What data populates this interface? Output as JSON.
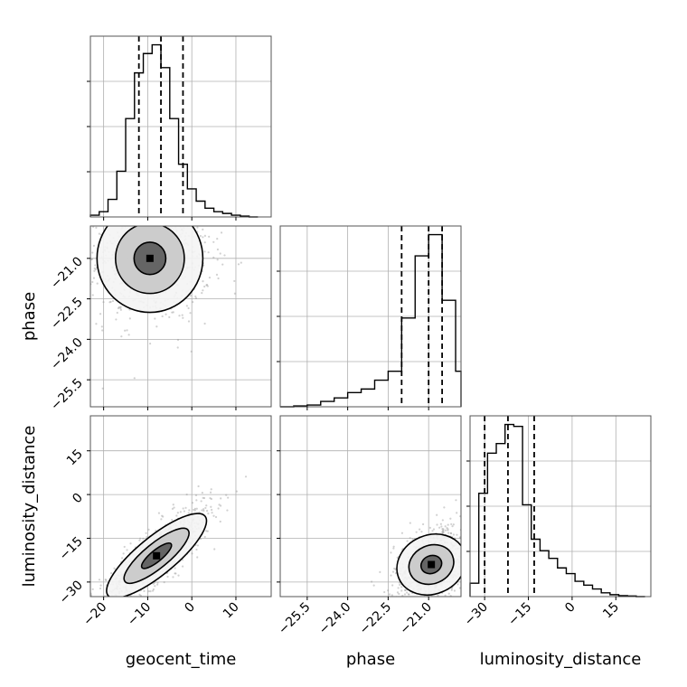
{
  "chart_data": {
    "type": "corner",
    "parameters": [
      "geocent_time",
      "phase",
      "luminosity_distance"
    ],
    "grid": true,
    "quantile_lines_style": "dashed",
    "ticks": {
      "geocent_time": {
        "values": [
          -20,
          -10,
          0,
          10
        ],
        "labels": [
          "−20",
          "−10",
          "0",
          "10"
        ],
        "range": [
          -23,
          18
        ]
      },
      "phase": {
        "values": [
          -25.5,
          -24.0,
          -22.5,
          -21.0
        ],
        "labels": [
          "−25.5",
          "−24.0",
          "−22.5",
          "−21.0"
        ],
        "range": [
          -26.5,
          -19.8
        ]
      },
      "luminosity_distance": {
        "values": [
          -30,
          -15,
          0,
          15
        ],
        "labels": [
          "−30",
          "−15",
          "0",
          "15"
        ],
        "range": [
          -35,
          27
        ]
      }
    },
    "marginals": {
      "geocent_time": {
        "bin_edges": [
          -23,
          -21,
          -19,
          -17,
          -15,
          -13,
          -11,
          -9,
          -7,
          -5,
          -3,
          -1,
          1,
          3,
          5,
          7,
          9,
          11,
          13,
          15
        ],
        "counts": [
          0.01,
          0.03,
          0.1,
          0.26,
          0.56,
          0.82,
          0.93,
          0.98,
          0.85,
          0.56,
          0.3,
          0.16,
          0.09,
          0.05,
          0.03,
          0.02,
          0.01,
          0.005,
          0.0
        ],
        "quantiles": [
          -12,
          -7,
          -2
        ]
      },
      "phase": {
        "bin_edges": [
          -26.5,
          -26.0,
          -25.5,
          -25.0,
          -24.5,
          -24.0,
          -23.5,
          -23.0,
          -22.5,
          -22.0,
          -21.5,
          -21.0,
          -20.5,
          -20.0,
          -19.8
        ],
        "counts": [
          0.0,
          0.005,
          0.01,
          0.03,
          0.05,
          0.08,
          0.1,
          0.15,
          0.2,
          0.5,
          0.85,
          0.97,
          0.6,
          0.2
        ],
        "quantiles": [
          -22.0,
          -21.0,
          -20.5
        ]
      },
      "luminosity_distance": {
        "bin_edges": [
          -35,
          -32,
          -29,
          -26,
          -23,
          -20,
          -17,
          -14,
          -11,
          -8,
          -5,
          -2,
          1,
          4,
          7,
          10,
          13,
          16,
          19,
          22,
          25
        ],
        "counts": [
          0.07,
          0.54,
          0.75,
          0.8,
          0.9,
          0.89,
          0.48,
          0.3,
          0.24,
          0.2,
          0.15,
          0.12,
          0.08,
          0.06,
          0.04,
          0.02,
          0.01,
          0.005,
          0.003,
          0.0
        ],
        "quantiles": [
          -30,
          -22,
          -13
        ]
      }
    },
    "joint": [
      {
        "x": "geocent_time",
        "y": "phase",
        "center": [
          -9.5,
          -21.0
        ],
        "spread": [
          6.0,
          1.0
        ]
      },
      {
        "x": "geocent_time",
        "y": "luminosity_distance",
        "center": [
          -8.0,
          -21.0
        ],
        "spread": [
          5.5,
          8.0
        ],
        "correlation": 0.85
      },
      {
        "x": "phase",
        "y": "luminosity_distance",
        "center": [
          -20.9,
          -24.0
        ],
        "spread": [
          0.6,
          6.0
        ],
        "correlation": 0.4
      }
    ]
  }
}
